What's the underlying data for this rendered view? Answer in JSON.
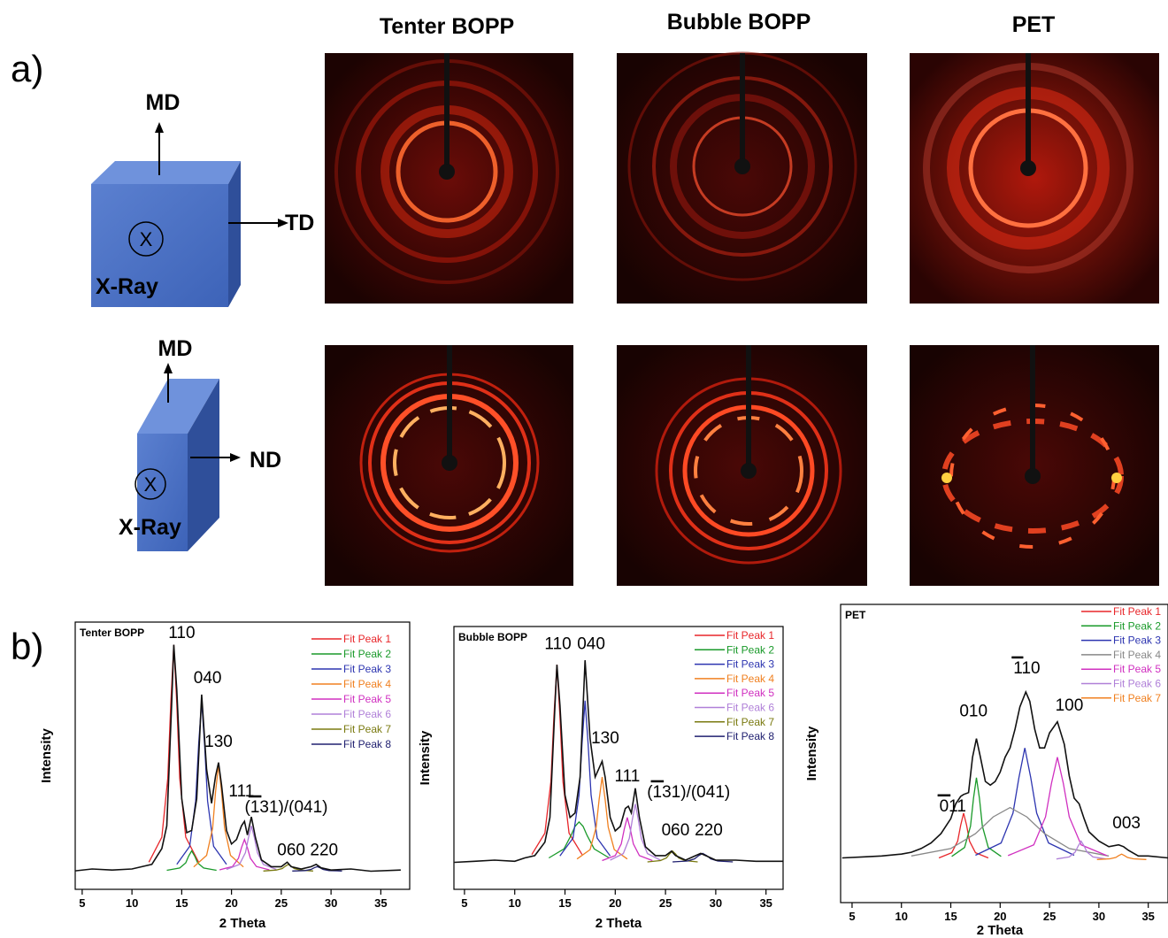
{
  "panel_a": {
    "label": "a)",
    "columns": [
      "Tenter BOPP",
      "Bubble BOPP",
      "PET"
    ],
    "diagram_top": {
      "md": "MD",
      "td": "TD",
      "x": "X",
      "xray": "X-Ray"
    },
    "diagram_bottom": {
      "md": "MD",
      "nd": "ND",
      "x": "X",
      "xray": "X-Ray"
    }
  },
  "panel_b": {
    "label": "b)"
  },
  "chart_data": [
    {
      "type": "line",
      "title": "Tenter BOPP",
      "xlabel": "2 Theta",
      "ylabel": "Intensity",
      "xlim": [
        4.3,
        37.9
      ],
      "ylim": [
        -0.08,
        1.1
      ],
      "xticks": [
        5,
        10,
        15,
        20,
        25,
        30,
        35
      ],
      "legend": "upper right",
      "annotations": [
        {
          "text": "110",
          "x": 15.0,
          "y": 1.03
        },
        {
          "text": "040",
          "x": 17.6,
          "y": 0.83
        },
        {
          "text": "130",
          "x": 18.7,
          "y": 0.55
        },
        {
          "text": "111",
          "x": 21.0,
          "y": 0.33
        },
        {
          "text": "(131)/(041)",
          "x": 25.5,
          "y": 0.26,
          "overline": true
        },
        {
          "text": "060",
          "x": 26.0,
          "y": 0.07
        },
        {
          "text": "220",
          "x": 29.3,
          "y": 0.07
        }
      ],
      "series": [
        {
          "name": "Fit Peak 1",
          "color": "#e8262a",
          "x": [
            11.7,
            13,
            13.6,
            13.9,
            14.2,
            14.5,
            14.8,
            15.4,
            16.7
          ],
          "values": [
            0.04,
            0.15,
            0.41,
            0.74,
            1,
            0.74,
            0.41,
            0.15,
            0.04
          ]
        },
        {
          "name": "Fit Peak 2",
          "color": "#1a9a2a",
          "x": [
            13.5,
            14.8,
            15.4,
            15.7,
            16,
            16.3,
            16.6,
            17.2,
            18.5
          ],
          "values": [
            0.004,
            0.014,
            0.037,
            0.067,
            0.09,
            0.067,
            0.037,
            0.014,
            0.004
          ]
        },
        {
          "name": "Fit Peak 3",
          "color": "#2d35b0",
          "x": [
            14.5,
            15.8,
            16.4,
            16.7,
            17,
            17.3,
            17.6,
            18.2,
            19.5
          ],
          "values": [
            0.03,
            0.11,
            0.31,
            0.56,
            0.75,
            0.56,
            0.31,
            0.11,
            0.03
          ]
        },
        {
          "name": "Fit Peak 4",
          "color": "#f08020",
          "x": [
            16.2,
            17.5,
            18.1,
            18.4,
            18.7,
            19,
            19.3,
            19.9,
            21.2
          ],
          "values": [
            0.019,
            0.07,
            0.19,
            0.35,
            0.47,
            0.35,
            0.19,
            0.07,
            0.019
          ]
        },
        {
          "name": "Fit Peak 5",
          "color": "#d030c0",
          "x": [
            18.8,
            20.1,
            20.7,
            21,
            21.3,
            21.6,
            21.9,
            22.5,
            23.8
          ],
          "values": [
            0.006,
            0.021,
            0.057,
            0.104,
            0.14,
            0.104,
            0.057,
            0.021,
            0.006
          ]
        },
        {
          "name": "Fit Peak 6",
          "color": "#b080d8",
          "x": [
            19.5,
            20.8,
            21.4,
            21.7,
            22,
            22.3,
            22.6,
            23.2,
            24.5
          ],
          "values": [
            0.008,
            0.03,
            0.082,
            0.148,
            0.2,
            0.148,
            0.082,
            0.03,
            0.008
          ]
        },
        {
          "name": "Fit Peak 7",
          "color": "#7a7a10",
          "x": [
            23.2,
            24.5,
            25.1,
            25.4,
            25.7,
            26,
            26.3,
            26.9,
            28.2
          ],
          "values": [
            0.001,
            0.005,
            0.012,
            0.022,
            0.03,
            0.022,
            0.012,
            0.005,
            0.001
          ]
        },
        {
          "name": "Fit Peak 8",
          "color": "#202070",
          "x": [
            26.1,
            27.4,
            28,
            28.3,
            28.6,
            28.9,
            29.2,
            29.8,
            31.1
          ],
          "values": [
            0.001,
            0.003,
            0.008,
            0.015,
            0.02,
            0.015,
            0.008,
            0.003,
            0.001
          ]
        },
        {
          "color": "#111111",
          "x": [
            4,
            6,
            8,
            10,
            11,
            12,
            13,
            13.5,
            14,
            14.2,
            14.5,
            15,
            15.5,
            16,
            16.5,
            17,
            17.5,
            18,
            18.4,
            18.7,
            19,
            19.5,
            20,
            20.5,
            21,
            21.3,
            21.6,
            22,
            22.4,
            23,
            24,
            25,
            25.6,
            26,
            27,
            28,
            28.5,
            29,
            30,
            32,
            34,
            37
          ],
          "values": [
            0,
            0.01,
            0.005,
            0.01,
            0.02,
            0.03,
            0.1,
            0.2,
            0.75,
            1.0,
            0.8,
            0.32,
            0.17,
            0.18,
            0.32,
            0.78,
            0.45,
            0.3,
            0.42,
            0.48,
            0.38,
            0.18,
            0.12,
            0.14,
            0.2,
            0.22,
            0.16,
            0.24,
            0.15,
            0.05,
            0.02,
            0.02,
            0.04,
            0.02,
            0.01,
            0.02,
            0.03,
            0.015,
            0.005,
            0.01,
            0,
            0.005
          ]
        }
      ]
    },
    {
      "type": "line",
      "title": "Bubble BOPP",
      "xlabel": "2 Theta",
      "ylabel": "Intensity",
      "xlim": [
        3.95,
        36.7
      ],
      "ylim": [
        -0.12,
        1.05
      ],
      "xticks": [
        5,
        10,
        15,
        20,
        25,
        30,
        35
      ],
      "legend": "upper right",
      "annotations": [
        {
          "text": "110",
          "x": 14.3,
          "y": 0.95
        },
        {
          "text": "040",
          "x": 17.6,
          "y": 0.95
        },
        {
          "text": "130",
          "x": 19.0,
          "y": 0.53
        },
        {
          "text": "111",
          "x": 21.2,
          "y": 0.36
        },
        {
          "text": "(131)/(041)",
          "x": 27.3,
          "y": 0.29,
          "overline": true
        },
        {
          "text": "060",
          "x": 26.0,
          "y": 0.12
        },
        {
          "text": "220",
          "x": 29.3,
          "y": 0.12
        }
      ],
      "series": [
        {
          "name": "Fit Peak 1",
          "color": "#e8262a",
          "x": [
            11.7,
            13,
            13.6,
            13.9,
            14.2,
            14.5,
            14.8,
            15.4,
            16.7
          ],
          "values": [
            0.035,
            0.13,
            0.36,
            0.65,
            0.88,
            0.65,
            0.36,
            0.13,
            0.035
          ]
        },
        {
          "name": "Fit Peak 2",
          "color": "#1a9a2a",
          "x": [
            13.4,
            14.9,
            15.6,
            16,
            16.4,
            16.8,
            17.2,
            17.9,
            19.4
          ],
          "values": [
            0.02,
            0.06,
            0.12,
            0.16,
            0.18,
            0.16,
            0.12,
            0.06,
            0.02
          ]
        },
        {
          "name": "Fit Peak 3",
          "color": "#2d35b0",
          "x": [
            14.5,
            15.8,
            16.4,
            16.7,
            17,
            17.3,
            17.6,
            18.2,
            19.5
          ],
          "values": [
            0.029,
            0.108,
            0.3,
            0.53,
            0.72,
            0.53,
            0.3,
            0.108,
            0.029
          ]
        },
        {
          "name": "Fit Peak 4",
          "color": "#f08020",
          "x": [
            16.2,
            17.5,
            18.1,
            18.4,
            18.7,
            19,
            19.3,
            19.9,
            21.2
          ],
          "values": [
            0.015,
            0.057,
            0.156,
            0.28,
            0.38,
            0.28,
            0.156,
            0.057,
            0.015
          ]
        },
        {
          "name": "Fit Peak 5",
          "color": "#d030c0",
          "x": [
            18.7,
            20,
            20.6,
            20.9,
            21.2,
            21.5,
            21.8,
            22.4,
            23.7
          ],
          "values": [
            0.008,
            0.03,
            0.082,
            0.148,
            0.2,
            0.148,
            0.082,
            0.03,
            0.008
          ]
        },
        {
          "name": "Fit Peak 6",
          "color": "#b080d8",
          "x": [
            19.5,
            20.8,
            21.4,
            21.7,
            22,
            22.3,
            22.6,
            23.2,
            24.5
          ],
          "values": [
            0.01,
            0.039,
            0.107,
            0.19,
            0.26,
            0.19,
            0.107,
            0.039,
            0.01
          ]
        },
        {
          "name": "Fit Peak 7",
          "color": "#7a7a10",
          "x": [
            23.2,
            24.5,
            25.1,
            25.4,
            25.7,
            26,
            26.3,
            26.9,
            28.2
          ],
          "values": [
            0.002,
            0.008,
            0.02,
            0.037,
            0.05,
            0.037,
            0.02,
            0.008,
            0.002
          ]
        },
        {
          "name": "Fit Peak 8",
          "color": "#202070",
          "x": [
            25.7,
            27.2,
            27.9,
            28.3,
            28.7,
            29.1,
            29.5,
            30.2,
            31.7
          ],
          "values": [
            0.002,
            0.006,
            0.016,
            0.03,
            0.04,
            0.03,
            0.016,
            0.006,
            0.002
          ]
        },
        {
          "color": "#111111",
          "x": [
            4,
            6,
            8,
            10,
            11,
            12,
            13,
            13.5,
            14,
            14.2,
            14.5,
            15,
            15.5,
            16,
            16.5,
            17,
            17.5,
            18,
            18.4,
            18.7,
            19,
            19.5,
            20,
            20.5,
            21,
            21.3,
            21.6,
            22,
            22.4,
            23,
            24,
            25,
            25.6,
            26,
            27,
            28,
            28.5,
            29,
            30,
            32,
            34,
            37
          ],
          "values": [
            0,
            0.005,
            0.01,
            0.005,
            0.02,
            0.03,
            0.09,
            0.2,
            0.7,
            0.88,
            0.7,
            0.3,
            0.2,
            0.22,
            0.38,
            0.9,
            0.55,
            0.38,
            0.42,
            0.45,
            0.38,
            0.2,
            0.14,
            0.16,
            0.24,
            0.25,
            0.22,
            0.33,
            0.2,
            0.07,
            0.03,
            0.03,
            0.05,
            0.03,
            0.01,
            0.03,
            0.04,
            0.03,
            0.01,
            0.01,
            0.005,
            0.005
          ]
        }
      ]
    },
    {
      "type": "line",
      "title": "PET",
      "xlabel": "2 Theta",
      "ylabel": "Intensity",
      "xlim": [
        3.84,
        37
      ],
      "ylim": [
        -0.23,
        1.37
      ],
      "xticks": [
        5,
        10,
        15,
        20,
        25,
        30,
        35
      ],
      "legend": "upper right",
      "annotations": [
        {
          "text": "011",
          "x": 15.2,
          "y": 0.26,
          "overline": true
        },
        {
          "text": "010",
          "x": 17.3,
          "y": 0.77
        },
        {
          "text": "110",
          "x": 22.7,
          "y": 1.0,
          "overline": true
        },
        {
          "text": "100",
          "x": 27.0,
          "y": 0.8
        },
        {
          "text": "003",
          "x": 32.8,
          "y": 0.17
        }
      ],
      "series": [
        {
          "name": "Fit Peak 1",
          "color": "#e8262a",
          "x": [
            13.8,
            15.1,
            15.7,
            16,
            16.3,
            16.6,
            16.9,
            17.5,
            18.8
          ],
          "values": [
            0.01,
            0.038,
            0.1,
            0.185,
            0.25,
            0.185,
            0.1,
            0.038,
            0.01
          ]
        },
        {
          "name": "Fit Peak 2",
          "color": "#1a9a2a",
          "x": [
            15.1,
            16.4,
            17,
            17.3,
            17.6,
            17.9,
            18.2,
            18.8,
            20.1
          ],
          "values": [
            0.018,
            0.066,
            0.18,
            0.33,
            0.44,
            0.33,
            0.18,
            0.066,
            0.018
          ]
        },
        {
          "name": "Fit Peak 3",
          "color": "#2d35b0",
          "x": [
            17.5,
            20.1,
            21.3,
            21.9,
            22.5,
            23.1,
            23.7,
            24.9,
            27.5
          ],
          "values": [
            0.024,
            0.09,
            0.25,
            0.44,
            0.6,
            0.44,
            0.25,
            0.09,
            0.024
          ]
        },
        {
          "name": "Fit Peak 4",
          "color": "#888888",
          "x": [
            11,
            15,
            17.5,
            19.3,
            21,
            22.7,
            24.5,
            27,
            31
          ],
          "values": [
            0.02,
            0.06,
            0.14,
            0.23,
            0.28,
            0.23,
            0.14,
            0.06,
            0.02
          ]
        },
        {
          "name": "Fit Peak 5",
          "color": "#d030c0",
          "x": [
            20.8,
            23.4,
            24.6,
            25.2,
            25.8,
            26.4,
            27,
            28.2,
            30.8
          ],
          "values": [
            0.022,
            0.08,
            0.23,
            0.41,
            0.55,
            0.41,
            0.23,
            0.08,
            0.022
          ]
        },
        {
          "name": "Fit Peak 6",
          "color": "#b080d8",
          "x": [
            25.7,
            27,
            27.6,
            27.9,
            28.2,
            28.5,
            28.8,
            29.4,
            30.7
          ],
          "values": [
            0.004,
            0.015,
            0.041,
            0.074,
            0.1,
            0.074,
            0.041,
            0.015,
            0.004
          ]
        },
        {
          "name": "Fit Peak 7",
          "color": "#f08020",
          "x": [
            29.8,
            31.1,
            31.7,
            32,
            32.3,
            32.6,
            32.9,
            33.5,
            34.8
          ],
          "values": [
            0.001,
            0.005,
            0.012,
            0.022,
            0.03,
            0.022,
            0.012,
            0.005,
            0.001
          ]
        },
        {
          "color": "#111111",
          "x": [
            4,
            6,
            8,
            10,
            11,
            12,
            13,
            14,
            15,
            15.5,
            16,
            16.3,
            16.8,
            17.2,
            17.6,
            18,
            18.5,
            19,
            19.5,
            20,
            20.5,
            21,
            21.5,
            22,
            22.6,
            23,
            23.5,
            24,
            24.5,
            25,
            25.8,
            26.5,
            27,
            27.5,
            28,
            28.5,
            29,
            30,
            31,
            32,
            32.5,
            33,
            34,
            35,
            37
          ],
          "values": [
            0.01,
            0.015,
            0.02,
            0.03,
            0.04,
            0.06,
            0.09,
            0.14,
            0.22,
            0.3,
            0.34,
            0.35,
            0.36,
            0.55,
            0.65,
            0.55,
            0.42,
            0.4,
            0.42,
            0.47,
            0.55,
            0.6,
            0.7,
            0.82,
            0.9,
            0.85,
            0.7,
            0.6,
            0.6,
            0.68,
            0.74,
            0.62,
            0.45,
            0.33,
            0.3,
            0.22,
            0.15,
            0.1,
            0.07,
            0.08,
            0.07,
            0.05,
            0.02,
            0.02,
            0.01
          ]
        }
      ]
    }
  ]
}
